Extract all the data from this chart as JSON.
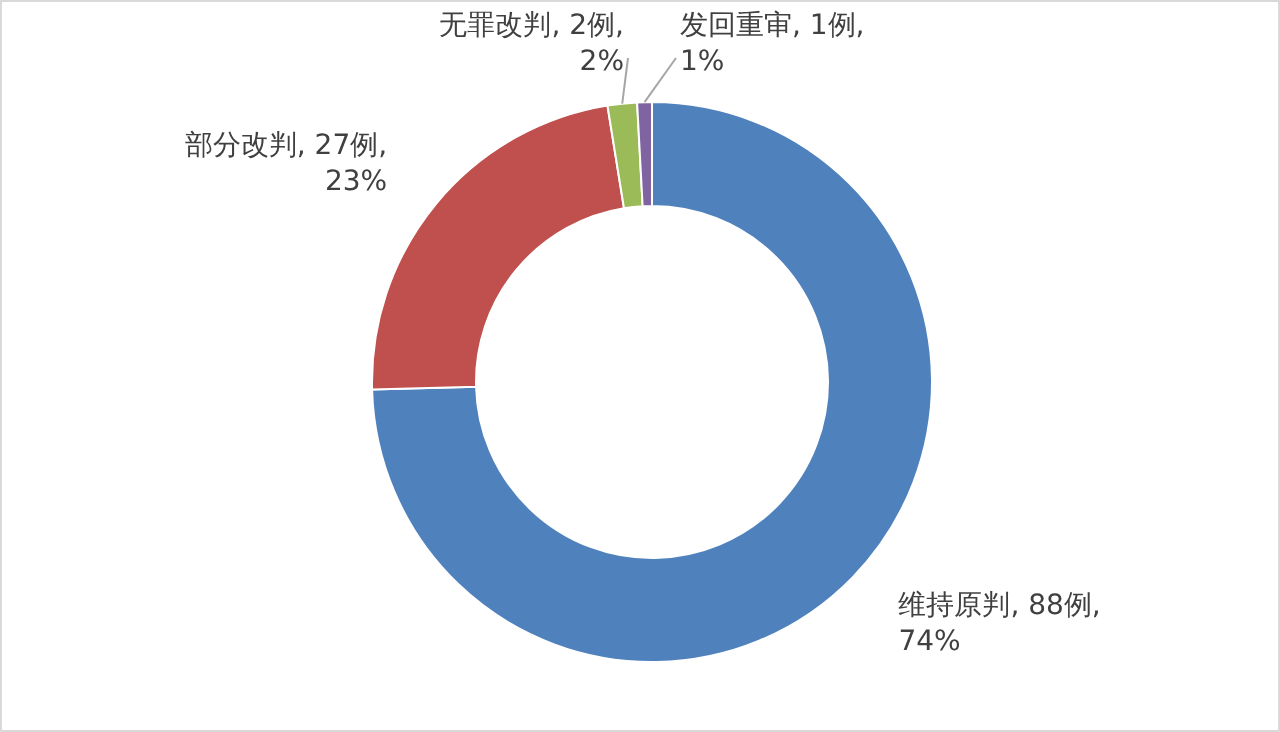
{
  "chart_data": {
    "type": "donut",
    "categories": [
      "维持原判",
      "部分改判",
      "无罪改判",
      "发回重审"
    ],
    "values": [
      88,
      27,
      2,
      1
    ],
    "colors": [
      "#4f81bd",
      "#c0504d",
      "#9bbb59",
      "#8064a2"
    ],
    "value_labels": [
      "88例, 74%",
      "27例, 23%",
      "2例, 2%",
      "1例, 1%"
    ],
    "legend": false
  }
}
